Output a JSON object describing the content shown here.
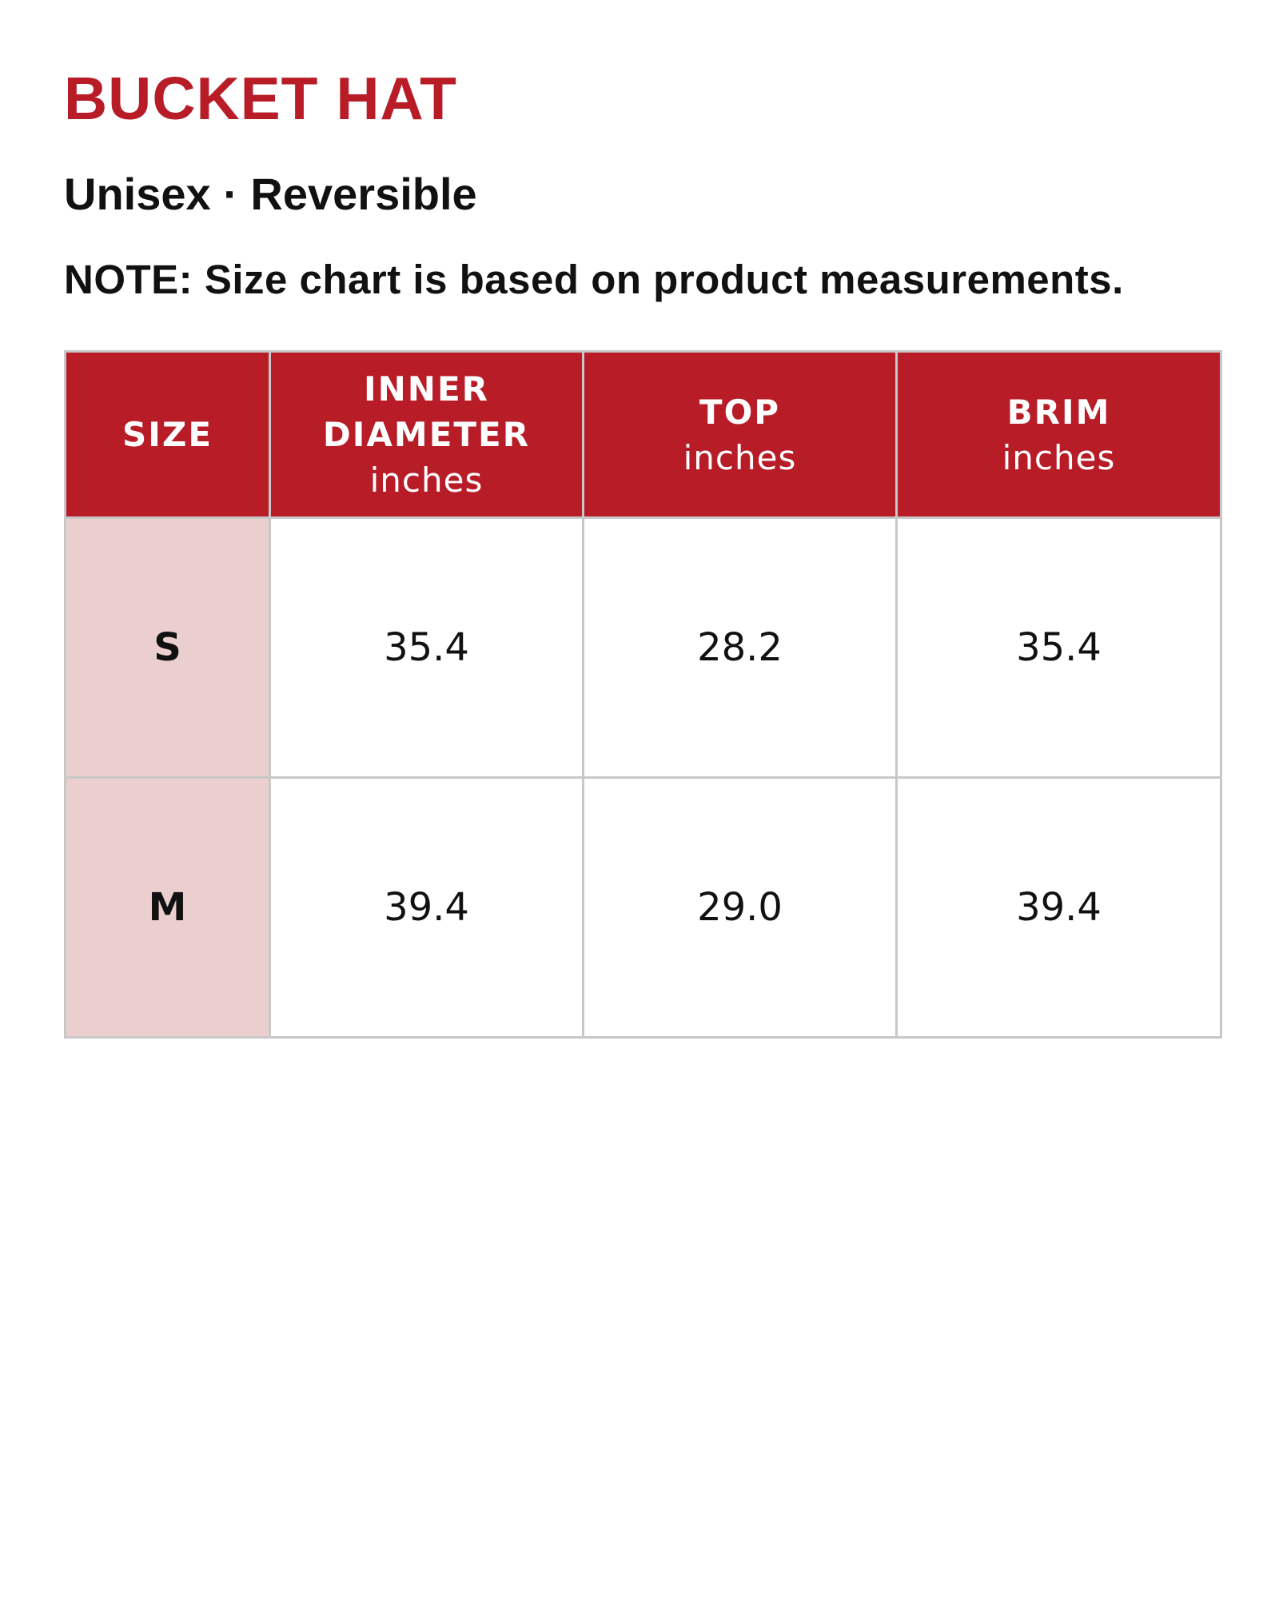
{
  "title": "BUCKET HAT",
  "subtitle": "Unisex · Reversible",
  "note": "NOTE: Size chart is based on product measurements.",
  "colors": {
    "accent": "#b71c27",
    "size_column_bg": "#ebcfcf",
    "border": "#c8c8c8"
  },
  "table": {
    "headers": [
      {
        "label": "SIZE",
        "unit": ""
      },
      {
        "label_line1": "INNER",
        "label_line2": "DIAMETER",
        "unit": "inches"
      },
      {
        "label": "TOP",
        "unit": "inches"
      },
      {
        "label": "BRIM",
        "unit": "inches"
      }
    ],
    "rows": [
      {
        "size": "S",
        "inner_diameter": "35.4",
        "top": "28.2",
        "brim": "35.4"
      },
      {
        "size": "M",
        "inner_diameter": "39.4",
        "top": "29.0",
        "brim": "39.4"
      }
    ]
  }
}
